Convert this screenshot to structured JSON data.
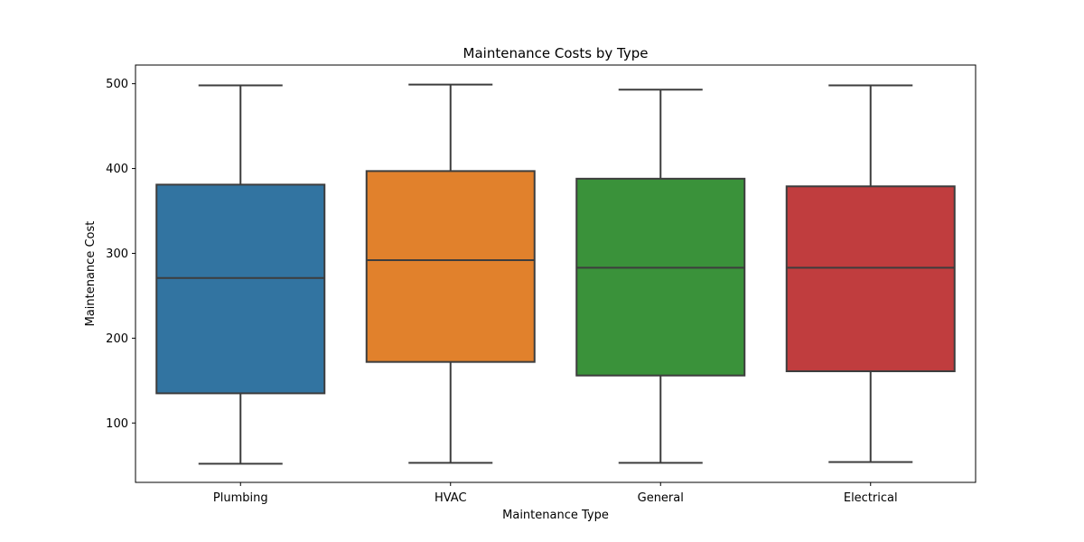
{
  "chart_data": {
    "type": "box",
    "title": "Maintenance Costs by Type",
    "xlabel": "Maintenance Type",
    "ylabel": "Maintenance Cost",
    "ylim": [
      30,
      522
    ],
    "yticks": [
      100,
      200,
      300,
      400,
      500
    ],
    "grid": false,
    "categories": [
      "Plumbing",
      "HVAC",
      "General",
      "Electrical"
    ],
    "boxes": [
      {
        "category": "Plumbing",
        "min": 52,
        "q1": 135,
        "median": 271,
        "q3": 381,
        "max": 498,
        "color": "#3274a1"
      },
      {
        "category": "HVAC",
        "min": 53,
        "q1": 172,
        "median": 292,
        "q3": 397,
        "max": 499,
        "color": "#e1812c"
      },
      {
        "category": "General",
        "min": 53,
        "q1": 156,
        "median": 283,
        "q3": 388,
        "max": 493,
        "color": "#3a923a"
      },
      {
        "category": "Electrical",
        "min": 54,
        "q1": 161,
        "median": 283,
        "q3": 379,
        "max": 498,
        "color": "#c03d3e"
      }
    ],
    "line_color": "#3d3d3d"
  }
}
